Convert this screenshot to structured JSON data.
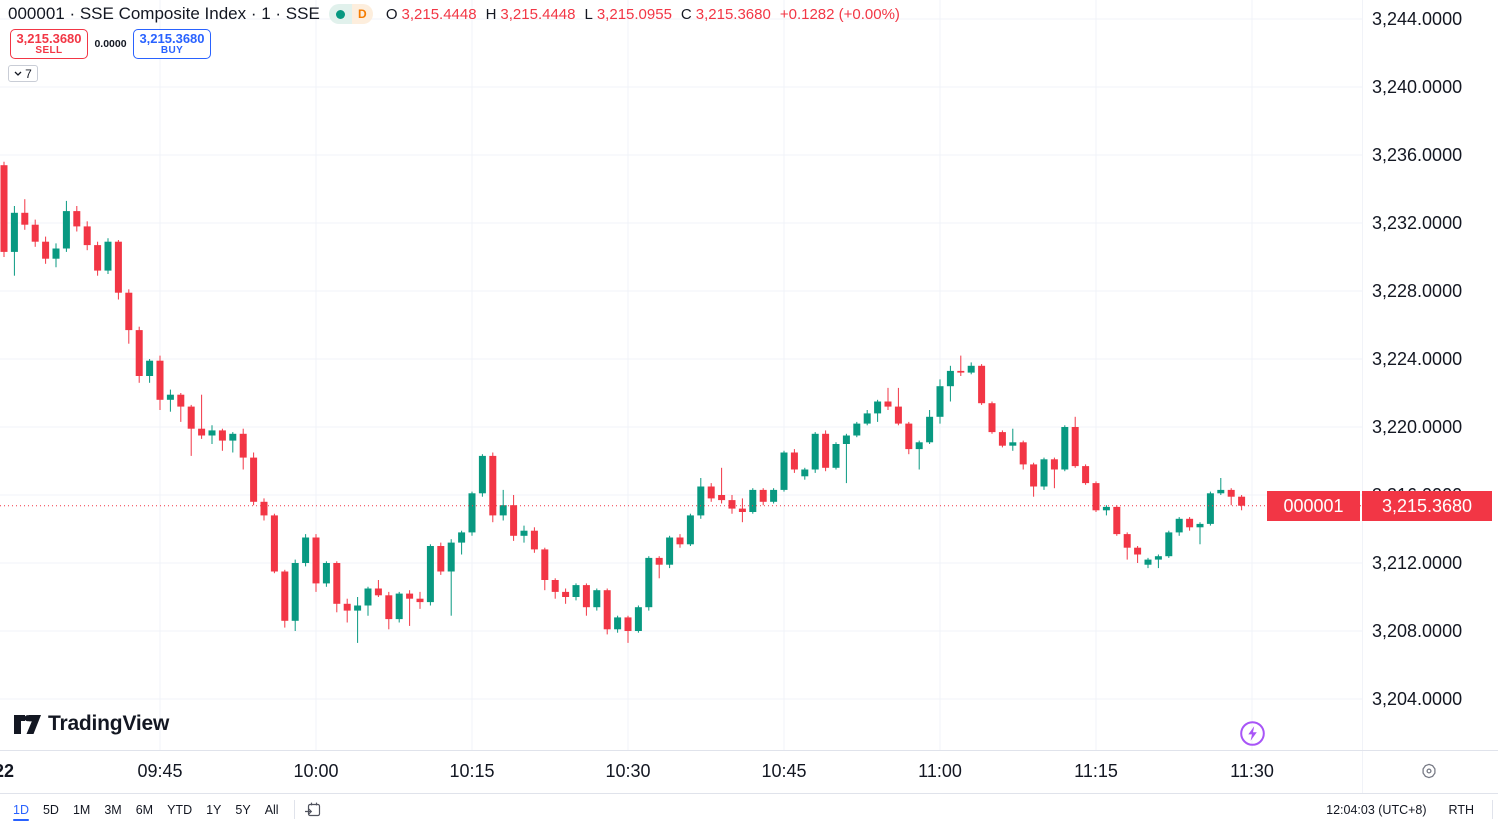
{
  "header": {
    "symbol_title": "000001 · SSE Composite Index · 1 · SSE",
    "data_badge": "D",
    "ohlc": {
      "o_label": "O",
      "o_value": "3,215.4448",
      "h_label": "H",
      "h_value": "3,215.4448",
      "l_label": "L",
      "l_value": "3,215.0955",
      "c_label": "C",
      "c_value": "3,215.3680",
      "change": "+0.1282 (+0.00%)"
    }
  },
  "trade_panel": {
    "sell_price": "3,215.3680",
    "sell_label": "SELL",
    "spread": "0.0000",
    "buy_price": "3,215.3680",
    "buy_label": "BUY",
    "quantity": "7"
  },
  "watermark": {
    "text": "TradingView"
  },
  "price_scale": {
    "ticks": [
      {
        "value": 3244,
        "label": "3,244.0000"
      },
      {
        "value": 3240,
        "label": "3,240.0000"
      },
      {
        "value": 3236,
        "label": "3,236.0000"
      },
      {
        "value": 3232,
        "label": "3,232.0000"
      },
      {
        "value": 3228,
        "label": "3,228.0000"
      },
      {
        "value": 3224,
        "label": "3,224.0000"
      },
      {
        "value": 3220,
        "label": "3,220.0000"
      },
      {
        "value": 3216,
        "label": "3,216.0000"
      },
      {
        "value": 3212,
        "label": "3,212.0000"
      },
      {
        "value": 3208,
        "label": "3,208.0000"
      },
      {
        "value": 3204,
        "label": "3,204.0000"
      }
    ],
    "price_tag": {
      "symbol": "000001",
      "price": "3,215.3680"
    }
  },
  "time_scale": {
    "day_label": "22",
    "ticks": [
      {
        "index": 15,
        "label": "09:45"
      },
      {
        "index": 30,
        "label": "10:00"
      },
      {
        "index": 45,
        "label": "10:15"
      },
      {
        "index": 60,
        "label": "10:30"
      },
      {
        "index": 75,
        "label": "10:45"
      },
      {
        "index": 90,
        "label": "11:00"
      },
      {
        "index": 105,
        "label": "11:15"
      },
      {
        "index": 120,
        "label": "11:30"
      }
    ]
  },
  "toolbar": {
    "ranges": [
      {
        "label": "1D",
        "active": true
      },
      {
        "label": "5D"
      },
      {
        "label": "1M"
      },
      {
        "label": "3M"
      },
      {
        "label": "6M"
      },
      {
        "label": "YTD"
      },
      {
        "label": "1Y"
      },
      {
        "label": "5Y"
      },
      {
        "label": "All"
      }
    ],
    "clock": "12:04:03 (UTC+8)",
    "session": "RTH"
  },
  "colors": {
    "up": "#089981",
    "down": "#f23645",
    "accent_blue": "#2962ff",
    "text": "#131722",
    "grid": "#f1f3f8",
    "axis_border": "#e0e3eb",
    "badge_d": "#f57c00",
    "marker_purple": "#a855f7",
    "price_line": "#f23645"
  },
  "chart_data": {
    "type": "candlestick",
    "title": "000001 SSE Composite Index, 1-minute candles, morning session",
    "interval_minutes": 1,
    "session_start": "09:30",
    "session_end": "11:30",
    "y_range": [
      3202,
      3245
    ],
    "y_tick_step": 4,
    "grid": true,
    "current_price": 3215.368,
    "candles_ohlc_format": [
      "time",
      "open",
      "high",
      "low",
      "close"
    ],
    "candles": [
      [
        "09:30",
        3235.4,
        3235.6,
        3230.0,
        3230.3
      ],
      [
        "09:31",
        3230.3,
        3233.0,
        3228.9,
        3232.6
      ],
      [
        "09:32",
        3232.6,
        3233.4,
        3231.6,
        3231.9
      ],
      [
        "09:33",
        3231.9,
        3232.2,
        3230.6,
        3230.9
      ],
      [
        "09:34",
        3230.9,
        3231.2,
        3229.6,
        3229.9
      ],
      [
        "09:35",
        3229.9,
        3230.8,
        3229.4,
        3230.5
      ],
      [
        "09:36",
        3230.5,
        3233.3,
        3230.3,
        3232.7
      ],
      [
        "09:37",
        3232.7,
        3233.0,
        3231.5,
        3231.8
      ],
      [
        "09:38",
        3231.8,
        3232.1,
        3230.4,
        3230.7
      ],
      [
        "09:39",
        3230.7,
        3230.9,
        3228.9,
        3229.2
      ],
      [
        "09:40",
        3229.2,
        3231.1,
        3229.0,
        3230.9
      ],
      [
        "09:41",
        3230.9,
        3231.0,
        3227.5,
        3227.9
      ],
      [
        "09:42",
        3227.9,
        3228.1,
        3224.9,
        3225.7
      ],
      [
        "09:43",
        3225.7,
        3225.9,
        3222.6,
        3223.0
      ],
      [
        "09:44",
        3223.0,
        3224.0,
        3222.6,
        3223.9
      ],
      [
        "09:45",
        3223.9,
        3224.2,
        3221.0,
        3221.6
      ],
      [
        "09:46",
        3221.6,
        3222.2,
        3220.9,
        3221.9
      ],
      [
        "09:47",
        3221.9,
        3222.0,
        3220.3,
        3221.2
      ],
      [
        "09:48",
        3221.2,
        3221.3,
        3218.3,
        3219.9
      ],
      [
        "09:49",
        3219.9,
        3221.9,
        3219.3,
        3219.5
      ],
      [
        "09:50",
        3219.5,
        3220.1,
        3219.0,
        3219.8
      ],
      [
        "09:51",
        3219.8,
        3219.9,
        3218.6,
        3219.2
      ],
      [
        "09:52",
        3219.2,
        3219.7,
        3218.5,
        3219.6
      ],
      [
        "09:53",
        3219.6,
        3219.9,
        3217.5,
        3218.2
      ],
      [
        "09:54",
        3218.2,
        3218.5,
        3215.4,
        3215.6
      ],
      [
        "09:55",
        3215.6,
        3215.8,
        3214.5,
        3214.8
      ],
      [
        "09:56",
        3214.8,
        3214.9,
        3211.4,
        3211.5
      ],
      [
        "09:57",
        3211.5,
        3211.6,
        3208.2,
        3208.6
      ],
      [
        "09:58",
        3208.6,
        3212.2,
        3208.0,
        3212.0
      ],
      [
        "09:59",
        3212.0,
        3213.7,
        3211.8,
        3213.5
      ],
      [
        "10:00",
        3213.5,
        3213.7,
        3210.3,
        3210.8
      ],
      [
        "10:01",
        3210.8,
        3212.1,
        3210.6,
        3212.0
      ],
      [
        "10:02",
        3212.0,
        3212.1,
        3209.1,
        3209.6
      ],
      [
        "10:03",
        3209.6,
        3209.9,
        3208.5,
        3209.2
      ],
      [
        "10:04",
        3209.2,
        3210.0,
        3207.3,
        3209.5
      ],
      [
        "10:05",
        3209.5,
        3210.6,
        3208.9,
        3210.5
      ],
      [
        "10:06",
        3210.5,
        3211.0,
        3210.0,
        3210.1
      ],
      [
        "10:07",
        3210.1,
        3210.3,
        3208.1,
        3208.7
      ],
      [
        "10:08",
        3208.7,
        3210.3,
        3208.5,
        3210.2
      ],
      [
        "10:09",
        3210.2,
        3210.4,
        3208.3,
        3209.9
      ],
      [
        "10:10",
        3209.9,
        3210.3,
        3209.3,
        3209.7
      ],
      [
        "10:11",
        3209.7,
        3213.1,
        3209.5,
        3213.0
      ],
      [
        "10:12",
        3213.0,
        3213.2,
        3211.3,
        3211.5
      ],
      [
        "10:13",
        3211.5,
        3213.4,
        3208.9,
        3213.2
      ],
      [
        "10:14",
        3213.2,
        3213.9,
        3212.5,
        3213.8
      ],
      [
        "10:15",
        3213.8,
        3216.2,
        3213.6,
        3216.1
      ],
      [
        "10:16",
        3216.1,
        3218.4,
        3215.9,
        3218.3
      ],
      [
        "10:17",
        3218.3,
        3218.5,
        3214.4,
        3214.8
      ],
      [
        "10:18",
        3214.8,
        3216.3,
        3214.5,
        3215.4
      ],
      [
        "10:19",
        3215.4,
        3216.0,
        3213.3,
        3213.6
      ],
      [
        "10:20",
        3213.6,
        3214.2,
        3213.2,
        3213.9
      ],
      [
        "10:21",
        3213.9,
        3214.1,
        3212.6,
        3212.8
      ],
      [
        "10:22",
        3212.8,
        3212.9,
        3210.4,
        3211.0
      ],
      [
        "10:23",
        3211.0,
        3211.1,
        3209.9,
        3210.3
      ],
      [
        "10:24",
        3210.3,
        3210.5,
        3209.6,
        3210.0
      ],
      [
        "10:25",
        3210.0,
        3210.8,
        3209.8,
        3210.7
      ],
      [
        "10:26",
        3210.7,
        3210.8,
        3208.9,
        3209.4
      ],
      [
        "10:27",
        3209.4,
        3210.5,
        3209.2,
        3210.4
      ],
      [
        "10:28",
        3210.4,
        3210.5,
        3207.8,
        3208.1
      ],
      [
        "10:29",
        3208.1,
        3208.9,
        3207.9,
        3208.8
      ],
      [
        "10:30",
        3208.8,
        3208.9,
        3207.3,
        3208.0
      ],
      [
        "10:31",
        3208.0,
        3209.5,
        3207.9,
        3209.4
      ],
      [
        "10:32",
        3209.4,
        3212.4,
        3209.2,
        3212.3
      ],
      [
        "10:33",
        3212.3,
        3212.4,
        3211.1,
        3211.9
      ],
      [
        "10:34",
        3211.9,
        3213.6,
        3211.7,
        3213.5
      ],
      [
        "10:35",
        3213.5,
        3213.7,
        3212.9,
        3213.1
      ],
      [
        "10:36",
        3213.1,
        3214.9,
        3213.0,
        3214.8
      ],
      [
        "10:37",
        3214.8,
        3217.0,
        3214.6,
        3216.5
      ],
      [
        "10:38",
        3216.5,
        3216.7,
        3215.6,
        3215.8
      ],
      [
        "10:39",
        3216.0,
        3217.6,
        3215.5,
        3215.7
      ],
      [
        "10:40",
        3215.7,
        3216.0,
        3214.9,
        3215.2
      ],
      [
        "10:41",
        3215.2,
        3215.8,
        3214.4,
        3215.0
      ],
      [
        "10:42",
        3215.0,
        3216.4,
        3214.9,
        3216.3
      ],
      [
        "10:43",
        3216.3,
        3216.4,
        3215.4,
        3215.6
      ],
      [
        "10:44",
        3215.6,
        3216.4,
        3215.5,
        3216.3
      ],
      [
        "10:45",
        3216.3,
        3218.6,
        3216.2,
        3218.5
      ],
      [
        "10:46",
        3218.5,
        3218.7,
        3217.3,
        3217.5
      ],
      [
        "10:47",
        3217.1,
        3217.6,
        3216.9,
        3217.5
      ],
      [
        "10:48",
        3217.5,
        3219.7,
        3217.3,
        3219.6
      ],
      [
        "10:49",
        3219.6,
        3219.8,
        3217.4,
        3217.6
      ],
      [
        "10:50",
        3217.6,
        3219.1,
        3217.5,
        3219.0
      ],
      [
        "10:51",
        3219.0,
        3219.6,
        3216.7,
        3219.5
      ],
      [
        "10:52",
        3219.5,
        3220.3,
        3219.4,
        3220.2
      ],
      [
        "10:53",
        3220.2,
        3221.0,
        3220.1,
        3220.8
      ],
      [
        "10:54",
        3220.8,
        3221.6,
        3220.3,
        3221.5
      ],
      [
        "10:55",
        3221.5,
        3222.3,
        3221.0,
        3221.2
      ],
      [
        "10:56",
        3221.2,
        3222.3,
        3220.1,
        3220.2
      ],
      [
        "10:57",
        3220.2,
        3220.3,
        3218.4,
        3218.7
      ],
      [
        "10:58",
        3218.7,
        3219.2,
        3217.5,
        3219.1
      ],
      [
        "10:59",
        3219.1,
        3221.0,
        3219.0,
        3220.6
      ],
      [
        "11:00",
        3220.6,
        3222.8,
        3220.2,
        3222.4
      ],
      [
        "11:01",
        3222.4,
        3223.6,
        3221.5,
        3223.3
      ],
      [
        "11:02",
        3223.3,
        3224.2,
        3223.0,
        3223.2
      ],
      [
        "11:03",
        3223.2,
        3223.8,
        3223.1,
        3223.6
      ],
      [
        "11:04",
        3223.6,
        3223.7,
        3221.3,
        3221.4
      ],
      [
        "11:05",
        3221.4,
        3221.5,
        3219.6,
        3219.7
      ],
      [
        "11:06",
        3219.7,
        3219.8,
        3218.8,
        3218.9
      ],
      [
        "11:07",
        3218.9,
        3219.9,
        3218.6,
        3219.1
      ],
      [
        "11:08",
        3219.1,
        3219.2,
        3217.5,
        3217.8
      ],
      [
        "11:09",
        3217.8,
        3217.9,
        3215.9,
        3216.5
      ],
      [
        "11:10",
        3216.5,
        3218.2,
        3216.3,
        3218.1
      ],
      [
        "11:11",
        3218.1,
        3218.2,
        3216.4,
        3217.5
      ],
      [
        "11:12",
        3217.5,
        3220.1,
        3217.4,
        3220.0
      ],
      [
        "11:13",
        3220.0,
        3220.6,
        3217.6,
        3217.7
      ],
      [
        "11:14",
        3217.7,
        3217.8,
        3216.6,
        3216.7
      ],
      [
        "11:15",
        3216.7,
        3216.8,
        3215.0,
        3215.1
      ],
      [
        "11:16",
        3215.1,
        3215.4,
        3214.8,
        3215.3
      ],
      [
        "11:17",
        3215.3,
        3215.4,
        3213.6,
        3213.7
      ],
      [
        "11:18",
        3213.7,
        3213.8,
        3212.2,
        3212.9
      ],
      [
        "11:19",
        3212.9,
        3213.0,
        3212.0,
        3212.5
      ],
      [
        "11:20",
        3211.9,
        3212.3,
        3211.7,
        3212.2
      ],
      [
        "11:21",
        3212.2,
        3212.5,
        3211.7,
        3212.4
      ],
      [
        "11:22",
        3212.4,
        3213.9,
        3212.3,
        3213.8
      ],
      [
        "11:23",
        3213.8,
        3214.7,
        3213.6,
        3214.6
      ],
      [
        "11:24",
        3214.6,
        3214.7,
        3213.9,
        3214.1
      ],
      [
        "11:25",
        3214.1,
        3214.4,
        3213.1,
        3214.3
      ],
      [
        "11:26",
        3214.3,
        3216.2,
        3214.2,
        3216.1
      ],
      [
        "11:27",
        3216.1,
        3217.0,
        3216.0,
        3216.3
      ],
      [
        "11:28",
        3216.3,
        3216.4,
        3215.4,
        3215.9
      ],
      [
        "11:29",
        3215.9,
        3216.0,
        3215.1,
        3215.37
      ]
    ]
  }
}
